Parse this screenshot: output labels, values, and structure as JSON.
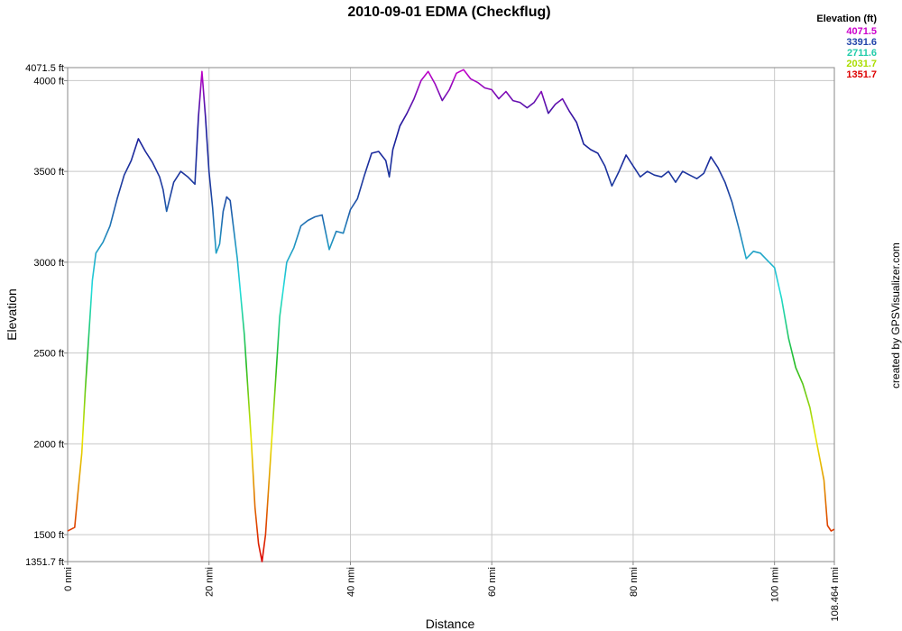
{
  "chart_data": {
    "type": "line",
    "title": "2010-09-01 EDMA (Checkflug)",
    "xlabel": "Distance",
    "ylabel": "Elevation",
    "xlim": [
      0,
      108.464
    ],
    "ylim": [
      1351.7,
      4071.5
    ],
    "x_unit": "nmi",
    "y_unit": "ft",
    "grid": true,
    "x_ticks": [
      {
        "value": 0,
        "label": "0 nmi"
      },
      {
        "value": 20,
        "label": "20 nmi"
      },
      {
        "value": 40,
        "label": "40 nmi"
      },
      {
        "value": 60,
        "label": "60 nmi"
      },
      {
        "value": 80,
        "label": "80 nmi"
      },
      {
        "value": 100,
        "label": "100 nmi"
      },
      {
        "value": 108.464,
        "label": "108.464 nmi"
      }
    ],
    "y_ticks": [
      {
        "value": 1351.7,
        "label": "1351.7 ft"
      },
      {
        "value": 1500,
        "label": "1500 ft"
      },
      {
        "value": 2000,
        "label": "2000 ft"
      },
      {
        "value": 2500,
        "label": "2500 ft"
      },
      {
        "value": 3000,
        "label": "3000 ft"
      },
      {
        "value": 3500,
        "label": "3500 ft"
      },
      {
        "value": 4000,
        "label": "4000 ft"
      },
      {
        "value": 4071.5,
        "label": "4071.5 ft"
      }
    ],
    "legend": {
      "title": "Elevation (ft)",
      "placement": "top-right",
      "entries": [
        {
          "label": "4071.5",
          "color": "#cc00cc"
        },
        {
          "label": "3391.6",
          "color": "#2244aa"
        },
        {
          "label": "2711.6",
          "color": "#22ccaa"
        },
        {
          "label": "2031.7",
          "color": "#aadd00"
        },
        {
          "label": "1351.7",
          "color": "#dd0000"
        }
      ]
    },
    "series": [
      {
        "x": [
          0,
          0.5,
          1,
          1.5,
          2,
          2.5,
          3,
          3.5,
          4,
          5,
          6,
          7,
          8,
          9,
          10,
          11,
          12,
          13,
          13.5,
          14,
          15,
          16,
          17,
          18,
          18.5,
          19,
          19.5,
          20,
          20.5,
          21,
          21.5,
          22,
          22.5,
          23,
          24,
          25,
          26,
          26.5,
          27,
          27.5,
          28,
          29,
          30,
          31,
          32,
          33,
          34,
          35,
          36,
          37,
          38,
          39,
          40,
          41,
          42,
          43,
          44,
          45,
          45.5,
          46,
          47,
          48,
          49,
          50,
          51,
          52,
          53,
          54,
          55,
          56,
          57,
          58,
          59,
          60,
          61,
          62,
          63,
          64,
          65,
          66,
          67,
          68,
          69,
          70,
          71,
          72,
          73,
          74,
          75,
          76,
          77,
          78,
          79,
          80,
          81,
          82,
          83,
          84,
          85,
          86,
          87,
          88,
          89,
          90,
          91,
          92,
          93,
          94,
          95,
          96,
          97,
          98,
          99,
          100,
          101,
          102,
          103,
          104,
          105,
          106,
          107,
          107.5,
          108,
          108.464
        ],
        "y": [
          1520,
          1530,
          1540,
          1750,
          1950,
          2300,
          2600,
          2900,
          3050,
          3110,
          3200,
          3350,
          3480,
          3560,
          3680,
          3610,
          3550,
          3470,
          3400,
          3280,
          3440,
          3500,
          3470,
          3430,
          3800,
          4050,
          3800,
          3500,
          3300,
          3050,
          3100,
          3280,
          3360,
          3340,
          3020,
          2600,
          2000,
          1650,
          1450,
          1351.7,
          1500,
          2100,
          2700,
          3000,
          3080,
          3200,
          3230,
          3250,
          3260,
          3070,
          3170,
          3160,
          3290,
          3350,
          3480,
          3600,
          3610,
          3560,
          3470,
          3620,
          3750,
          3820,
          3900,
          4000,
          4050,
          3980,
          3890,
          3950,
          4040,
          4060,
          4010,
          3990,
          3960,
          3950,
          3900,
          3940,
          3890,
          3880,
          3850,
          3880,
          3940,
          3820,
          3870,
          3900,
          3830,
          3770,
          3650,
          3620,
          3600,
          3530,
          3420,
          3500,
          3590,
          3530,
          3470,
          3500,
          3480,
          3470,
          3500,
          3440,
          3500,
          3480,
          3460,
          3490,
          3580,
          3520,
          3440,
          3330,
          3180,
          3020,
          3060,
          3050,
          3010,
          2970,
          2800,
          2580,
          2420,
          2330,
          2200,
          2000,
          1800,
          1550,
          1520,
          1530
        ]
      }
    ]
  },
  "credit": "created by GPSVisualizer.com"
}
